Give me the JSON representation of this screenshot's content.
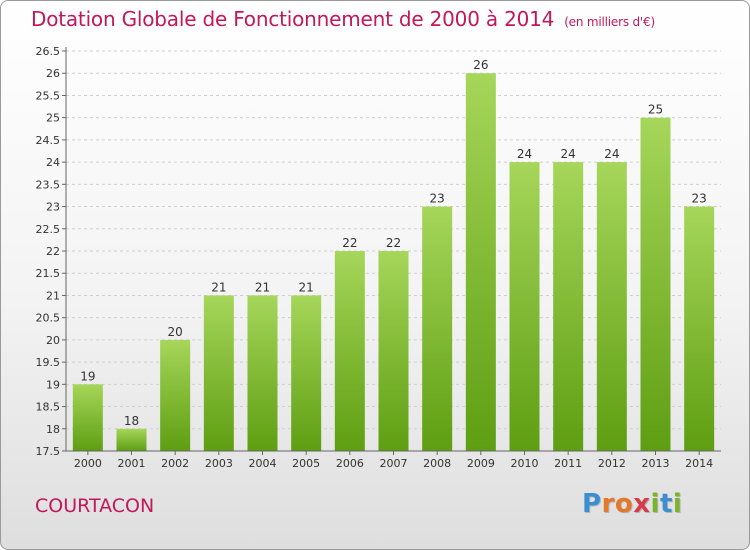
{
  "title": "Dotation Globale de Fonctionnement de 2000 à 2014",
  "unit": "(en milliers d'€)",
  "location": "COURTACON",
  "logo": "Proxiti",
  "logo_letters": [
    {
      "char": "P",
      "color": "#3b8fd1"
    },
    {
      "char": "r",
      "color": "#e4772a"
    },
    {
      "char": "o",
      "color": "#e4772a"
    },
    {
      "char": "x",
      "color": "#d93a49"
    },
    {
      "char": "i",
      "color": "#7ab32e"
    },
    {
      "char": "t",
      "color": "#3b8fd1"
    },
    {
      "char": "i",
      "color": "#7ab32e"
    }
  ],
  "colors": {
    "title": "#c2185b",
    "bar_light": "#a6d65a",
    "bar_dark": "#5e9e12",
    "grid": "#cfcfcf"
  },
  "chart_data": {
    "type": "bar",
    "title": "Dotation Globale de Fonctionnement de 2000 à 2014",
    "xlabel": "",
    "ylabel": "",
    "categories": [
      "2000",
      "2001",
      "2002",
      "2003",
      "2004",
      "2005",
      "2006",
      "2007",
      "2008",
      "2009",
      "2010",
      "2011",
      "2012",
      "2013",
      "2014"
    ],
    "values": [
      19,
      18,
      20,
      21,
      21,
      21,
      22,
      22,
      23,
      26,
      24,
      24,
      24,
      25,
      23
    ],
    "ylim": [
      17.5,
      26.5
    ],
    "yticks": [
      "17.5",
      "18",
      "18.5",
      "19",
      "19.5",
      "20",
      "20.5",
      "21",
      "21.5",
      "22",
      "22.5",
      "23",
      "23.5",
      "24",
      "24.5",
      "25",
      "25.5",
      "26",
      "26.5"
    ],
    "grid": true
  }
}
